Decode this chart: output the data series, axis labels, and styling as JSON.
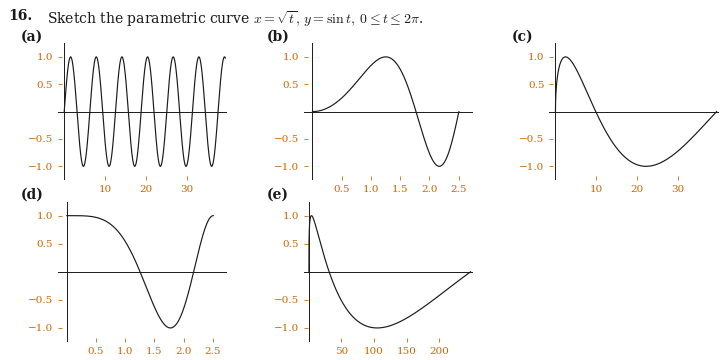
{
  "title_num": "16.",
  "title_text": "Sketch the parametric curve $x = \\sqrt{t},\\, y = \\sin t,\\; 0 \\leq t \\leq 2\\pi$.",
  "subplots": [
    {
      "label": "(a)",
      "x_param": "t",
      "x_ticks": [
        10,
        20,
        30
      ],
      "x_lim": [
        -1.5,
        40
      ],
      "y_lim": [
        -1.25,
        1.25
      ],
      "y_ticks": [
        -1.0,
        -0.5,
        0.5,
        1.0
      ],
      "t_end": 39.478
    },
    {
      "label": "(b)",
      "x_param": "sqrt_t",
      "x_ticks": [
        0.5,
        1.0,
        1.5,
        2.0,
        2.5
      ],
      "x_lim": [
        -0.15,
        2.75
      ],
      "y_lim": [
        -1.25,
        1.25
      ],
      "y_ticks": [
        -1.0,
        -0.5,
        0.5,
        1.0
      ],
      "t_end": 39.478
    },
    {
      "label": "(c)",
      "x_param": "t_sq",
      "x_ticks": [
        10,
        20,
        30
      ],
      "x_lim": [
        -1.5,
        40
      ],
      "y_lim": [
        -1.25,
        1.25
      ],
      "y_ticks": [
        -1.0,
        -0.5,
        0.5,
        1.0
      ],
      "t_end": 6.2832
    },
    {
      "label": "(d)",
      "x_param": "sqrt_t_cos",
      "x_ticks": [
        0.5,
        1.0,
        1.5,
        2.0,
        2.5
      ],
      "x_lim": [
        -0.15,
        2.75
      ],
      "y_lim": [
        -1.25,
        1.25
      ],
      "y_ticks": [
        -1.0,
        -0.5,
        0.5,
        1.0
      ],
      "t_end": 39.478
    },
    {
      "label": "(e)",
      "x_param": "t_cube",
      "x_ticks": [
        50,
        100,
        150,
        200
      ],
      "x_lim": [
        -8,
        252
      ],
      "y_lim": [
        -1.25,
        1.25
      ],
      "y_ticks": [
        -1.0,
        -0.5,
        0.5,
        1.0
      ],
      "t_end": 39.478
    }
  ],
  "line_color": "#1a1a1a",
  "label_color": "#1a1a1a",
  "tick_color": "#cc6600",
  "axis_color": "#1a1a1a",
  "bg_color": "#ffffff",
  "label_fontsize": 10,
  "tick_fontsize": 7.5,
  "title_fontsize": 10,
  "figsize": [
    7.26,
    3.6
  ],
  "dpi": 100
}
